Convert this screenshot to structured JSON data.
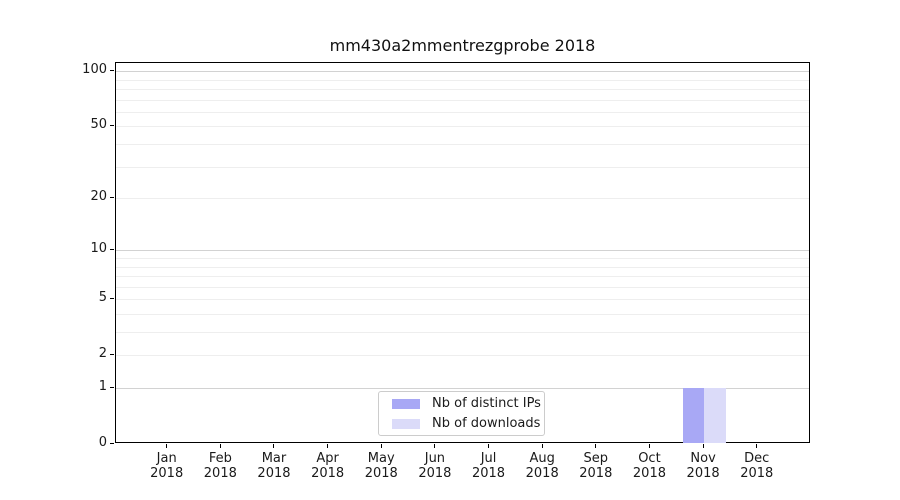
{
  "chart_data": {
    "type": "bar",
    "title": "mm430a2mmentrezgprobe 2018",
    "categories": [
      "Jan",
      "Feb",
      "Mar",
      "Apr",
      "May",
      "Jun",
      "Jul",
      "Aug",
      "Sep",
      "Oct",
      "Nov",
      "Dec"
    ],
    "category_year": "2018",
    "series": [
      {
        "name": "Nb of distinct IPs",
        "color": "#a8a8f5",
        "values": [
          0,
          0,
          0,
          0,
          0,
          0,
          0,
          0,
          0,
          0,
          1,
          0
        ]
      },
      {
        "name": "Nb of downloads",
        "color": "#dbdbf9",
        "values": [
          0,
          0,
          0,
          0,
          0,
          0,
          0,
          0,
          0,
          0,
          1,
          0
        ]
      }
    ],
    "y_axis": {
      "scale": "log1p",
      "tick_labels": [
        0,
        1,
        2,
        5,
        10,
        20,
        50,
        100
      ],
      "gridlines_major": [
        1,
        10,
        100
      ],
      "gridlines_minor": [
        2,
        3,
        4,
        5,
        6,
        7,
        8,
        9,
        20,
        30,
        40,
        50,
        60,
        70,
        80,
        90
      ],
      "range": [
        0,
        111
      ]
    },
    "x_axis": {
      "label_year_on_second_line": true
    },
    "legend": {
      "position": "lower center"
    },
    "grid": "horizontal",
    "colors": {
      "axis": "#000000",
      "text": "#1a1a1a",
      "grid_major": "#d2d2d2",
      "grid_minor": "#eeeeee",
      "legend_border": "#cccccc",
      "background": "#ffffff"
    }
  }
}
